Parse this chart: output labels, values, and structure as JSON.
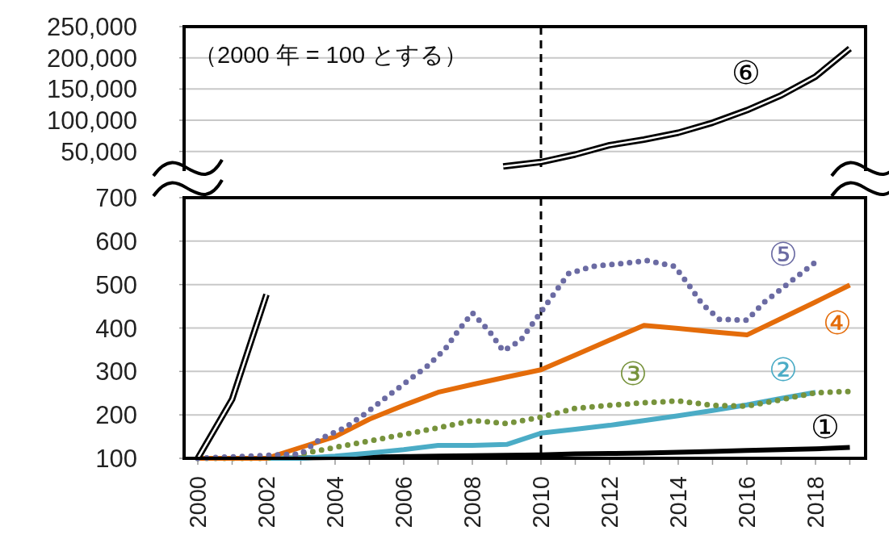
{
  "chart_data": [
    {
      "type": "line",
      "annotations": [
        "（2000 年 = 100 とする）"
      ],
      "xlim": [
        1999.6,
        2019.46
      ],
      "ylim": [
        25000,
        250000
      ],
      "yticks": [
        {
          "value": 50000,
          "label": "50,000"
        },
        {
          "value": 100000,
          "label": "100,000"
        },
        {
          "value": 150000,
          "label": "150,000"
        },
        {
          "value": 200000,
          "label": "200,000"
        },
        {
          "value": 250000,
          "label": "250,000"
        }
      ],
      "grid": "y",
      "tick_labels": "y",
      "ref_lines": [
        {
          "axis": "x",
          "value": 2010,
          "line_style": "dashed",
          "color": "#000000"
        }
      ],
      "series": [
        {
          "name": "⑥",
          "color": "#000000",
          "line_style": "solid",
          "x": [
            2008.9,
            2010,
            2011,
            2012,
            2013,
            2014,
            2015,
            2016,
            2017,
            2018,
            2019
          ],
          "values": [
            26000,
            33000,
            45000,
            60000,
            69000,
            80000,
            96000,
            116000,
            140000,
            170000,
            215000
          ]
        }
      ]
    },
    {
      "type": "line",
      "x": [
        2000,
        2001,
        2002,
        2003,
        2004,
        2005,
        2006,
        2007,
        2008,
        2009,
        2010,
        2011,
        2012,
        2013,
        2014,
        2015,
        2016,
        2017,
        2018,
        2019
      ],
      "xlim": [
        1999.6,
        2019.46
      ],
      "xticks": [
        {
          "value": 2000,
          "label": "2000"
        },
        {
          "value": 2001,
          "label": null
        },
        {
          "value": 2002,
          "label": "2002"
        },
        {
          "value": 2003,
          "label": null
        },
        {
          "value": 2004,
          "label": "2004"
        },
        {
          "value": 2005,
          "label": null
        },
        {
          "value": 2006,
          "label": "2006"
        },
        {
          "value": 2007,
          "label": null
        },
        {
          "value": 2008,
          "label": "2008"
        },
        {
          "value": 2009,
          "label": null
        },
        {
          "value": 2010,
          "label": "2010"
        },
        {
          "value": 2011,
          "label": null
        },
        {
          "value": 2012,
          "label": "2012"
        },
        {
          "value": 2013,
          "label": null
        },
        {
          "value": 2014,
          "label": "2014"
        },
        {
          "value": 2015,
          "label": null
        },
        {
          "value": 2016,
          "label": "2016"
        },
        {
          "value": 2017,
          "label": null
        },
        {
          "value": 2018,
          "label": "2018"
        },
        {
          "value": 2019,
          "label": null
        }
      ],
      "ylim": [
        100,
        700
      ],
      "yticks": [
        100,
        200,
        300,
        400,
        500,
        600,
        700
      ],
      "grid": "y",
      "ref_lines": [
        {
          "axis": "x",
          "value": 2010,
          "line_style": "dashed",
          "color": "#000000"
        }
      ],
      "series": [
        {
          "name": "①",
          "color": "#000000",
          "line_style": "solid",
          "values": [
            100,
            100,
            100,
            101,
            102,
            103,
            104,
            105,
            106,
            107,
            108,
            110,
            111,
            112,
            114,
            116,
            118,
            120,
            122,
            125
          ]
        },
        {
          "name": "②",
          "color": "#4bacc6",
          "line_style": "solid",
          "values": [
            100,
            100,
            100,
            100,
            105,
            112,
            120,
            130,
            130,
            132,
            158,
            167,
            176,
            187,
            198,
            210,
            223,
            238,
            252,
            null
          ]
        },
        {
          "name": "③",
          "color": "#77933c",
          "line_style": "dotted",
          "values": [
            100,
            100,
            100,
            110,
            125,
            140,
            155,
            170,
            187,
            180,
            195,
            215,
            222,
            228,
            232,
            222,
            220,
            235,
            251,
            254
          ]
        },
        {
          "name": "④",
          "color": "#e46c0a",
          "line_style": "solid",
          "values": [
            100,
            100,
            100,
            125,
            150,
            190,
            222,
            252,
            270,
            287,
            304,
            338,
            372,
            406,
            399,
            391,
            384,
            422,
            460,
            499
          ]
        },
        {
          "name": "⑤",
          "color": "#6b6ba3",
          "line_style": "dotted",
          "x": [
            2000,
            2003,
            2003.6,
            2004.3,
            2004.9,
            2005.5,
            2006.1,
            2006.7,
            2007.2,
            2007.6,
            2008,
            2008.5,
            2008.9,
            2009.4,
            2010,
            2010.4,
            2010.8,
            2011.5,
            2012.3,
            2013.1,
            2013.9,
            2014.3,
            2014.7,
            2015.2,
            2016,
            2016.5,
            2017.1,
            2017.7,
            2018
          ],
          "values": [
            100,
            110,
            146,
            171,
            204,
            241,
            277,
            313,
            351,
            395,
            435,
            392,
            347,
            371,
            437,
            481,
            525,
            542,
            548,
            555,
            542,
            500,
            455,
            420,
            418,
            459,
            496,
            533,
            552
          ]
        },
        {
          "color": "#000000",
          "line_style": "solid",
          "x": [
            2000,
            2001,
            2002
          ],
          "values": [
            100,
            236,
            477
          ]
        }
      ]
    }
  ]
}
